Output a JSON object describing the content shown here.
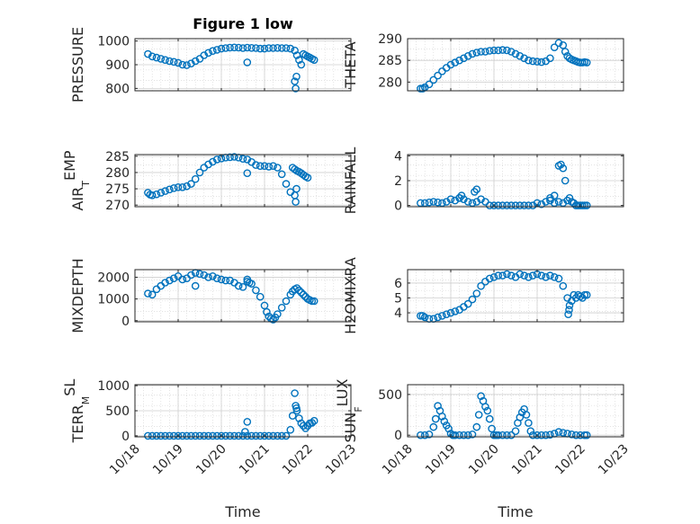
{
  "figure": {
    "title": "Figure 1 low",
    "xlabel": "Time",
    "x_tick_labels": [
      "10/18",
      "10/19",
      "10/20",
      "10/21",
      "10/22",
      "10/23"
    ],
    "marker_color": "#0072BD"
  },
  "chart_data": [
    {
      "type": "scatter",
      "ylabel": "PRESSURE",
      "title": "Figure 1 low",
      "ylim": [
        790,
        1010
      ],
      "yticks": [
        800,
        900,
        1000
      ],
      "grid": true,
      "xlim": [
        0,
        5
      ],
      "x": [
        0.3,
        0.4,
        0.5,
        0.6,
        0.7,
        0.8,
        0.9,
        1.0,
        1.1,
        1.2,
        1.3,
        1.4,
        1.5,
        1.6,
        1.7,
        1.8,
        1.9,
        2.0,
        2.1,
        2.2,
        2.3,
        2.4,
        2.5,
        2.6,
        2.7,
        2.8,
        2.9,
        3.0,
        3.1,
        3.2,
        3.3,
        3.4,
        3.5,
        3.6,
        3.7,
        3.75,
        3.8,
        3.85,
        3.9,
        3.95,
        4.0,
        4.05,
        4.1,
        4.15,
        2.6,
        3.7,
        3.72,
        3.74
      ],
      "y": [
        945,
        935,
        930,
        925,
        920,
        915,
        912,
        908,
        900,
        898,
        905,
        915,
        925,
        940,
        950,
        958,
        963,
        968,
        970,
        972,
        973,
        972,
        970,
        972,
        971,
        970,
        968,
        968,
        970,
        970,
        971,
        970,
        970,
        968,
        960,
        940,
        920,
        900,
        945,
        940,
        935,
        930,
        925,
        920,
        910,
        830,
        800,
        850
      ]
    },
    {
      "type": "scatter",
      "ylabel": "THETA",
      "ylim": [
        278,
        290
      ],
      "yticks": [
        280,
        285,
        290
      ],
      "grid": true,
      "xlim": [
        0,
        5
      ],
      "x": [
        0.3,
        0.35,
        0.4,
        0.5,
        0.6,
        0.7,
        0.8,
        0.9,
        1.0,
        1.1,
        1.2,
        1.3,
        1.4,
        1.5,
        1.6,
        1.7,
        1.8,
        1.9,
        2.0,
        2.1,
        2.2,
        2.3,
        2.4,
        2.5,
        2.6,
        2.7,
        2.8,
        2.9,
        3.0,
        3.1,
        3.2,
        3.3,
        3.4,
        3.5,
        3.6,
        3.65,
        3.7,
        3.75,
        3.8,
        3.85,
        3.9,
        3.95,
        4.0,
        4.05,
        4.1,
        4.15
      ],
      "y": [
        278.5,
        278.5,
        278.8,
        279.5,
        280.5,
        281.5,
        282.5,
        283.3,
        284,
        284.5,
        285,
        285.5,
        286,
        286.5,
        286.8,
        287,
        287,
        287.2,
        287.3,
        287.3,
        287.4,
        287.3,
        287,
        286.5,
        286,
        285.5,
        285,
        284.8,
        284.7,
        284.6,
        284.8,
        285.5,
        288,
        289,
        288.5,
        287,
        286,
        285.5,
        285.2,
        285,
        284.8,
        284.6,
        284.5,
        284.5,
        284.6,
        284.5
      ]
    },
    {
      "type": "scatter",
      "ylabel": "AIR_TEMP",
      "ylim": [
        269.5,
        285.5
      ],
      "yticks": [
        270,
        275,
        280,
        285
      ],
      "grid": true,
      "xlim": [
        0,
        5
      ],
      "x": [
        0.3,
        0.35,
        0.4,
        0.5,
        0.6,
        0.7,
        0.8,
        0.9,
        1.0,
        1.1,
        1.2,
        1.3,
        1.4,
        1.5,
        1.6,
        1.7,
        1.8,
        1.9,
        2.0,
        2.1,
        2.2,
        2.3,
        2.4,
        2.5,
        2.6,
        2.7,
        2.8,
        2.9,
        3.0,
        3.1,
        3.2,
        3.3,
        3.4,
        3.5,
        3.6,
        3.65,
        3.7,
        3.75,
        3.8,
        3.85,
        3.9,
        3.95,
        4.0,
        2.6,
        3.7,
        3.72,
        3.74
      ],
      "y": [
        273.8,
        273.2,
        273,
        273.3,
        273.8,
        274.3,
        274.8,
        275.2,
        275.5,
        275.5,
        275.8,
        276.5,
        278,
        280,
        281.5,
        282.5,
        283.3,
        284,
        284.3,
        284.6,
        284.7,
        284.8,
        284.6,
        284.2,
        284,
        283.2,
        282.3,
        282,
        282,
        281.8,
        282,
        281.5,
        279.5,
        276.5,
        274,
        281.5,
        281,
        280.5,
        280.2,
        279.8,
        279.3,
        278.8,
        278.4,
        279.8,
        273,
        271,
        275
      ]
    },
    {
      "type": "scatter",
      "ylabel": "RAINFALL",
      "ylim": [
        -0.1,
        4.1
      ],
      "yticks": [
        0,
        2,
        4
      ],
      "grid": true,
      "xlim": [
        0,
        5
      ],
      "x": [
        0.3,
        0.4,
        0.5,
        0.6,
        0.7,
        0.8,
        0.9,
        1.0,
        1.1,
        1.2,
        1.3,
        1.4,
        1.5,
        1.6,
        1.7,
        1.8,
        1.9,
        2.0,
        2.1,
        2.2,
        2.3,
        2.4,
        2.5,
        2.6,
        2.7,
        2.8,
        2.9,
        3.0,
        3.1,
        3.2,
        3.3,
        3.4,
        3.5,
        3.6,
        3.7,
        3.75,
        3.8,
        3.85,
        3.9,
        3.95,
        4.0,
        4.05,
        4.1,
        4.15,
        3.5,
        3.55,
        3.6,
        3.65,
        3.4,
        3.3,
        1.6,
        1.55,
        1.2,
        1.25
      ],
      "y": [
        0.2,
        0.2,
        0.25,
        0.3,
        0.25,
        0.2,
        0.3,
        0.5,
        0.4,
        0.6,
        0.5,
        0.3,
        0.2,
        0.3,
        0.5,
        0.3,
        0,
        0,
        0,
        0,
        0,
        0,
        0,
        0,
        0,
        0,
        0,
        0.2,
        0.1,
        0.3,
        0.4,
        0.2,
        0.3,
        0.2,
        0.4,
        0.6,
        0.3,
        0.2,
        0,
        0,
        0,
        0,
        0,
        0,
        3.2,
        3.3,
        3.0,
        2.0,
        0.8,
        0.6,
        1.3,
        1.1,
        0.6,
        0.8
      ]
    },
    {
      "type": "scatter",
      "ylabel": "MIXDEPTH",
      "ylim": [
        -50,
        2350
      ],
      "yticks": [
        0,
        1000,
        2000
      ],
      "grid": true,
      "xlim": [
        0,
        5
      ],
      "x": [
        0.3,
        0.4,
        0.5,
        0.6,
        0.7,
        0.8,
        0.9,
        1.0,
        1.1,
        1.2,
        1.3,
        1.4,
        1.5,
        1.6,
        1.7,
        1.8,
        1.9,
        2.0,
        2.1,
        2.2,
        2.3,
        2.4,
        2.5,
        2.6,
        2.7,
        2.8,
        2.9,
        3.0,
        3.05,
        3.1,
        3.15,
        3.2,
        3.25,
        3.3,
        3.4,
        3.5,
        3.6,
        3.65,
        3.7,
        3.75,
        3.8,
        3.85,
        3.9,
        3.95,
        4.0,
        4.05,
        4.1,
        4.15,
        2.6,
        2.65,
        1.4
      ],
      "y": [
        1250,
        1200,
        1450,
        1600,
        1750,
        1850,
        1950,
        2050,
        1900,
        1950,
        2100,
        2200,
        2150,
        2100,
        2000,
        2050,
        1950,
        1900,
        1850,
        1850,
        1750,
        1600,
        1550,
        1800,
        1700,
        1400,
        1100,
        700,
        400,
        200,
        100,
        50,
        150,
        300,
        600,
        900,
        1200,
        1350,
        1450,
        1500,
        1400,
        1300,
        1200,
        1100,
        1000,
        950,
        900,
        900,
        1900,
        1750,
        1600
      ]
    },
    {
      "type": "scatter",
      "ylabel": "H2OMIXRA",
      "ylim": [
        3.4,
        6.9
      ],
      "yticks": [
        4,
        5,
        6
      ],
      "grid": true,
      "xlim": [
        0,
        5
      ],
      "x": [
        0.3,
        0.35,
        0.4,
        0.5,
        0.6,
        0.7,
        0.8,
        0.9,
        1.0,
        1.1,
        1.2,
        1.3,
        1.4,
        1.5,
        1.6,
        1.7,
        1.8,
        1.9,
        2.0,
        2.1,
        2.2,
        2.3,
        2.4,
        2.5,
        2.6,
        2.7,
        2.8,
        2.9,
        3.0,
        3.1,
        3.2,
        3.3,
        3.4,
        3.5,
        3.6,
        3.7,
        3.75,
        3.8,
        3.85,
        3.9,
        3.95,
        4.0,
        4.05,
        4.1,
        4.15,
        3.72,
        3.74
      ],
      "y": [
        3.8,
        3.8,
        3.7,
        3.6,
        3.6,
        3.7,
        3.8,
        3.9,
        4.0,
        4.1,
        4.2,
        4.4,
        4.6,
        4.9,
        5.3,
        5.8,
        6.1,
        6.3,
        6.4,
        6.5,
        6.5,
        6.6,
        6.5,
        6.4,
        6.6,
        6.5,
        6.4,
        6.5,
        6.6,
        6.5,
        6.4,
        6.5,
        6.4,
        6.3,
        5.8,
        5.0,
        4.5,
        4.8,
        5.2,
        5.0,
        5.2,
        5.1,
        5.0,
        5.2,
        5.2,
        3.9,
        4.2
      ]
    },
    {
      "type": "scatter",
      "ylabel": "TERR_MSL",
      "ylim": [
        -20,
        1020
      ],
      "yticks": [
        0,
        500,
        1000
      ],
      "grid": true,
      "xlim": [
        0,
        5
      ],
      "x": [
        0.3,
        0.4,
        0.5,
        0.6,
        0.7,
        0.8,
        0.9,
        1.0,
        1.1,
        1.2,
        1.3,
        1.4,
        1.5,
        1.6,
        1.7,
        1.8,
        1.9,
        2.0,
        2.1,
        2.2,
        2.3,
        2.4,
        2.5,
        2.6,
        2.7,
        2.8,
        2.9,
        3.0,
        3.1,
        3.2,
        3.3,
        3.4,
        3.5,
        3.6,
        3.65,
        3.7,
        3.72,
        3.75,
        3.8,
        3.85,
        3.9,
        3.95,
        4.0,
        4.05,
        4.1,
        4.15,
        2.6,
        2.55,
        3.74
      ],
      "y": [
        0,
        0,
        0,
        0,
        0,
        0,
        0,
        0,
        0,
        0,
        0,
        0,
        0,
        0,
        0,
        0,
        0,
        0,
        0,
        0,
        0,
        0,
        0,
        0,
        0,
        0,
        0,
        0,
        0,
        0,
        0,
        0,
        0,
        120,
        400,
        850,
        600,
        500,
        350,
        250,
        200,
        150,
        200,
        250,
        260,
        300,
        280,
        80,
        550
      ]
    },
    {
      "type": "scatter",
      "ylabel": "SUN_FLUX",
      "ylim": [
        -20,
        620
      ],
      "yticks": [
        0,
        500
      ],
      "grid": true,
      "xlim": [
        0,
        5
      ],
      "x": [
        0.3,
        0.4,
        0.5,
        0.6,
        0.65,
        0.7,
        0.75,
        0.8,
        0.85,
        0.9,
        0.95,
        1.0,
        1.05,
        1.1,
        1.2,
        1.3,
        1.4,
        1.5,
        1.6,
        1.65,
        1.7,
        1.75,
        1.8,
        1.85,
        1.9,
        1.95,
        2.0,
        2.05,
        2.1,
        2.2,
        2.3,
        2.4,
        2.5,
        2.55,
        2.6,
        2.65,
        2.7,
        2.75,
        2.8,
        2.85,
        2.9,
        3.0,
        3.1,
        3.2,
        3.3,
        3.4,
        3.5,
        3.6,
        3.7,
        3.8,
        3.9,
        4.0,
        4.1,
        4.15
      ],
      "y": [
        0,
        0,
        10,
        100,
        200,
        360,
        300,
        230,
        170,
        120,
        80,
        20,
        0,
        0,
        0,
        0,
        0,
        10,
        100,
        250,
        480,
        420,
        350,
        300,
        200,
        80,
        0,
        0,
        0,
        0,
        0,
        0,
        50,
        150,
        220,
        280,
        320,
        250,
        150,
        50,
        0,
        0,
        0,
        0,
        5,
        20,
        40,
        30,
        20,
        10,
        0,
        0,
        0,
        0
      ]
    }
  ]
}
